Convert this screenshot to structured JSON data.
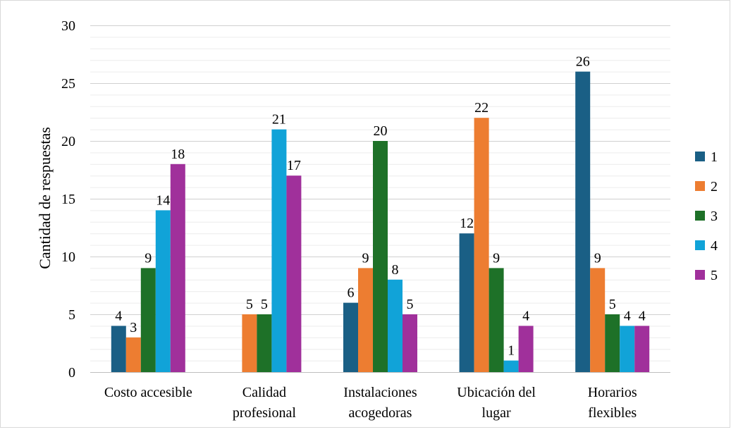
{
  "chart_data": {
    "type": "bar",
    "title": "",
    "xlabel": "",
    "ylabel": "Cantidad de respuestas",
    "ylim": [
      0,
      30
    ],
    "yticks": [
      0,
      5,
      10,
      15,
      20,
      25,
      30
    ],
    "minor_gridline_step": 1,
    "legend_position": "right",
    "categories": [
      [
        "Costo accesible"
      ],
      [
        "Calidad",
        "profesional"
      ],
      [
        "Instalaciones",
        "acogedoras"
      ],
      [
        "Ubicación del",
        "lugar"
      ],
      [
        "Horarios",
        "flexibles"
      ]
    ],
    "series": [
      {
        "name": "1",
        "color": "#1a5f85",
        "values": [
          4,
          0,
          6,
          12,
          26
        ]
      },
      {
        "name": "2",
        "color": "#ed7d31",
        "values": [
          3,
          5,
          9,
          22,
          9
        ]
      },
      {
        "name": "3",
        "color": "#1e7128",
        "values": [
          9,
          5,
          20,
          9,
          5
        ]
      },
      {
        "name": "4",
        "color": "#11a3d8",
        "values": [
          14,
          21,
          8,
          1,
          4
        ]
      },
      {
        "name": "5",
        "color": "#a0309b",
        "values": [
          18,
          17,
          5,
          4,
          4
        ]
      }
    ],
    "data_labels": [
      [
        "4",
        "",
        "6",
        "12",
        "26"
      ],
      [
        "3",
        "5",
        "9",
        "22",
        "9"
      ],
      [
        "9",
        "5",
        "20",
        "9",
        "5"
      ],
      [
        "14",
        "21",
        "8",
        "1",
        "4"
      ],
      [
        "18",
        "17",
        "5",
        "4",
        "4"
      ]
    ]
  }
}
